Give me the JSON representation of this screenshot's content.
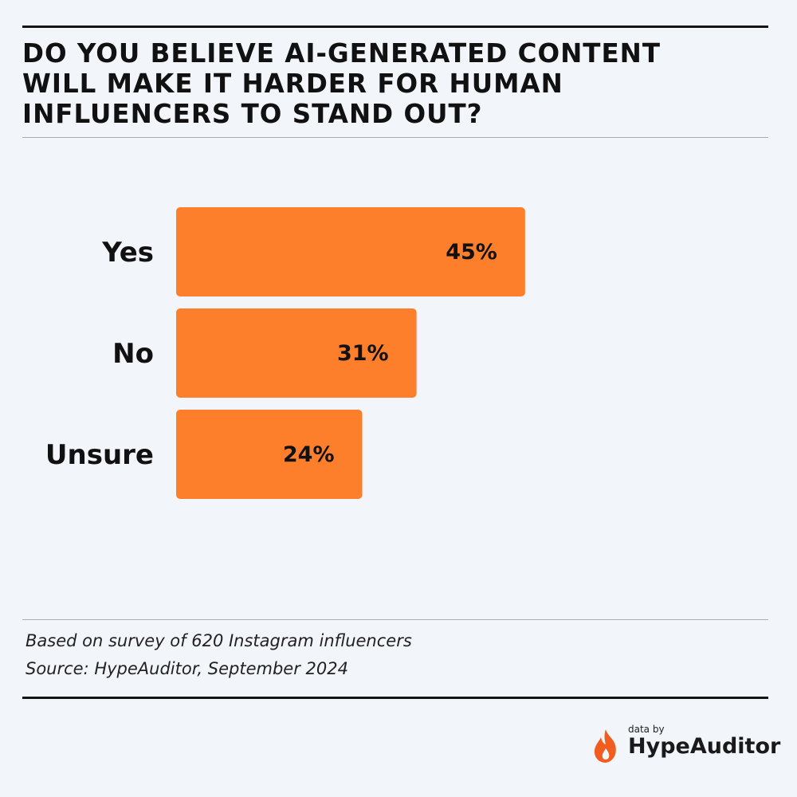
{
  "title": "Do you believe AI-generated content will make it harder for human influencers to stand out?",
  "chart_data": {
    "type": "bar",
    "orientation": "horizontal",
    "categories": [
      "Yes",
      "No",
      "Unsure"
    ],
    "values": [
      45,
      31,
      24
    ],
    "value_labels": [
      "45%",
      "31%",
      "24%"
    ],
    "unit": "%",
    "xlim": [
      0,
      100
    ],
    "bar_color": "#fd7f2c",
    "grid": false,
    "legend": "none"
  },
  "notes": {
    "survey": "Based on survey of 620 Instagram influencers",
    "source": "Source: HypeAuditor, September 2024"
  },
  "brand": {
    "prefix": "data by",
    "name": "HypeAuditor",
    "icon": "flame-icon",
    "icon_color": "#f25c1e"
  }
}
